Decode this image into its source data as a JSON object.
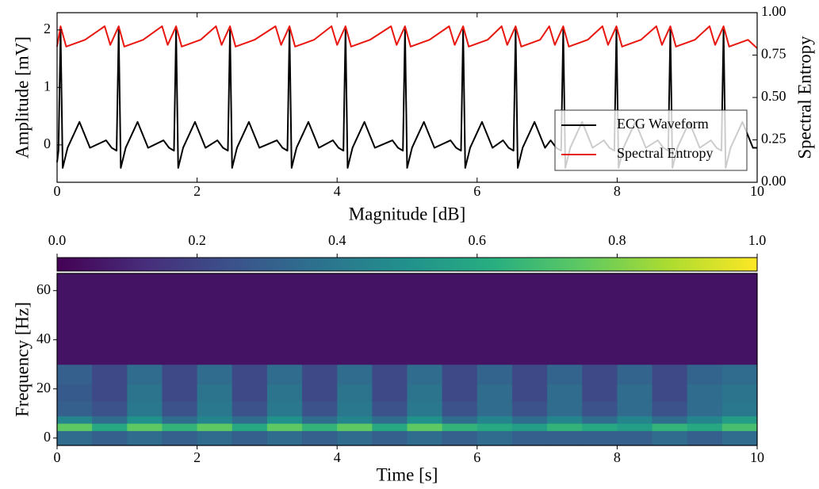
{
  "chart_data": [
    {
      "type": "line",
      "ylabel": "Amplitude [mV]",
      "y2label": "Spectral Entropy",
      "xlim": [
        0,
        10
      ],
      "xticks": [
        0,
        2,
        4,
        6,
        8,
        10
      ],
      "ylim": [
        -0.65,
        2.3
      ],
      "yticks": [
        0,
        1,
        2
      ],
      "y2lim": [
        0,
        1
      ],
      "y2ticks": [
        {
          "value": 0,
          "label": "0.00"
        },
        {
          "value": 0.25,
          "label": "0.25"
        },
        {
          "value": 0.5,
          "label": "0.50"
        },
        {
          "value": 0.75,
          "label": "0.75"
        },
        {
          "value": 1,
          "label": "1.00"
        }
      ],
      "legend": "lower right",
      "series": [
        {
          "name": "ECG Waveform",
          "color": "#000000",
          "x": [
            0,
            0.02,
            0.05,
            0.08,
            0.15,
            0.32,
            0.47,
            0.7,
            0.78,
            0.85,
            0.88,
            0.91,
            0.98,
            1.15,
            1.3,
            1.52,
            1.6,
            1.67,
            1.7,
            1.73,
            1.8,
            1.97,
            2.12,
            2.29,
            2.37,
            2.44,
            2.47,
            2.5,
            2.57,
            2.74,
            2.89,
            3.14,
            3.22,
            3.29,
            3.32,
            3.35,
            3.42,
            3.59,
            3.74,
            3.94,
            4.02,
            4.09,
            4.12,
            4.15,
            4.22,
            4.39,
            4.54,
            4.79,
            4.87,
            4.94,
            4.97,
            5.0,
            5.07,
            5.24,
            5.39,
            5.62,
            5.7,
            5.77,
            5.8,
            5.83,
            5.9,
            6.07,
            6.22,
            6.37,
            6.45,
            6.52,
            6.55,
            6.58,
            6.65,
            6.82,
            6.97,
            7.05,
            7.13,
            7.2,
            7.23,
            7.26,
            7.33,
            7.5,
            7.65,
            7.81,
            7.89,
            7.96,
            7.99,
            8.02,
            8.09,
            8.26,
            8.41,
            8.58,
            8.66,
            8.73,
            8.76,
            8.79,
            8.86,
            9.03,
            9.18,
            9.34,
            9.42,
            9.49,
            9.52,
            9.55,
            9.62,
            9.79,
            9.94,
            10
          ],
          "values": [
            -0.3,
            -0.1,
            2.0,
            -0.4,
            -0.05,
            0.4,
            -0.05,
            0.08,
            -0.05,
            -0.1,
            2.0,
            -0.4,
            -0.05,
            0.4,
            -0.05,
            0.08,
            -0.05,
            -0.1,
            2.0,
            -0.4,
            -0.05,
            0.4,
            -0.05,
            0.08,
            -0.05,
            -0.1,
            2.0,
            -0.4,
            -0.05,
            0.4,
            -0.05,
            0.08,
            -0.05,
            -0.1,
            2.0,
            -0.4,
            -0.05,
            0.4,
            -0.05,
            0.08,
            -0.05,
            -0.1,
            2.0,
            -0.4,
            -0.05,
            0.4,
            -0.05,
            0.08,
            -0.05,
            -0.1,
            2.0,
            -0.4,
            -0.05,
            0.4,
            -0.05,
            0.08,
            -0.05,
            -0.1,
            2.0,
            -0.4,
            -0.05,
            0.4,
            -0.05,
            0.08,
            -0.05,
            -0.1,
            2.0,
            -0.4,
            -0.05,
            0.4,
            -0.05,
            0.08,
            -0.05,
            -0.1,
            2.0,
            -0.4,
            -0.05,
            0.4,
            -0.05,
            0.08,
            -0.05,
            -0.1,
            2.0,
            -0.4,
            -0.05,
            0.4,
            -0.05,
            0.08,
            -0.05,
            -0.1,
            2.0,
            -0.4,
            -0.05,
            0.4,
            -0.05,
            0.08,
            -0.05,
            -0.1,
            2.0,
            -0.4,
            -0.05,
            0.4,
            -0.05,
            -0.05
          ]
        },
        {
          "name": "Spectral Entropy",
          "color": "#e8170f",
          "axis": "y2",
          "x": [
            0,
            0.05,
            0.13,
            0.4,
            0.68,
            0.76,
            0.88,
            0.96,
            1.23,
            1.5,
            1.58,
            1.7,
            1.78,
            2.05,
            2.27,
            2.35,
            2.47,
            2.55,
            2.82,
            3.12,
            3.2,
            3.32,
            3.4,
            3.67,
            3.92,
            4.0,
            4.12,
            4.2,
            4.47,
            4.77,
            4.85,
            4.97,
            5.05,
            5.32,
            5.6,
            5.68,
            5.8,
            5.88,
            6.15,
            6.35,
            6.43,
            6.55,
            6.63,
            6.9,
            7.03,
            7.11,
            7.23,
            7.31,
            7.58,
            7.79,
            7.87,
            7.99,
            8.07,
            8.34,
            8.56,
            8.64,
            8.76,
            8.84,
            9.11,
            9.32,
            9.4,
            9.52,
            9.6,
            9.87,
            10
          ],
          "values": [
            0.8,
            0.92,
            0.8,
            0.84,
            0.92,
            0.81,
            0.92,
            0.8,
            0.84,
            0.92,
            0.81,
            0.92,
            0.8,
            0.84,
            0.92,
            0.81,
            0.92,
            0.8,
            0.84,
            0.92,
            0.81,
            0.92,
            0.8,
            0.84,
            0.92,
            0.81,
            0.92,
            0.8,
            0.84,
            0.92,
            0.81,
            0.92,
            0.8,
            0.84,
            0.92,
            0.81,
            0.92,
            0.8,
            0.84,
            0.92,
            0.81,
            0.92,
            0.8,
            0.84,
            0.92,
            0.81,
            0.92,
            0.8,
            0.84,
            0.92,
            0.81,
            0.92,
            0.8,
            0.84,
            0.92,
            0.81,
            0.92,
            0.8,
            0.84,
            0.92,
            0.81,
            0.92,
            0.8,
            0.84,
            0.79
          ]
        }
      ]
    },
    {
      "type": "heatmap",
      "colormap": "viridis",
      "xlabel": "Time [s]",
      "ylabel": "Frequency [Hz]",
      "colorbar_label": "Magnitude [dB]",
      "xlim": [
        0,
        10
      ],
      "xticks": [
        0,
        2,
        4,
        6,
        8,
        10
      ],
      "ylim": [
        -3,
        67
      ],
      "yticks": [
        0,
        20,
        40,
        60
      ],
      "clim": [
        0,
        1
      ],
      "cticks": [
        {
          "value": 0,
          "label": "0.0"
        },
        0.2,
        0.4,
        0.6,
        0.8,
        {
          "value": 1,
          "label": "1.0"
        }
      ],
      "x_edges": [
        0,
        0.5,
        1,
        1.5,
        2,
        2.5,
        3,
        3.5,
        4,
        4.5,
        5,
        5.5,
        6,
        6.5,
        7,
        7.5,
        8,
        8.5,
        9,
        9.5,
        10
      ],
      "y_edges": [
        -3,
        3,
        6,
        9,
        15,
        22,
        30,
        67
      ],
      "z": [
        [
          0.35,
          0.3,
          0.35,
          0.3,
          0.35,
          0.3,
          0.35,
          0.3,
          0.35,
          0.3,
          0.35,
          0.3,
          0.35,
          0.3,
          0.3,
          0.3,
          0.3,
          0.35,
          0.3,
          0.35
        ],
        [
          0.75,
          0.6,
          0.75,
          0.65,
          0.75,
          0.6,
          0.75,
          0.65,
          0.75,
          0.6,
          0.75,
          0.65,
          0.6,
          0.55,
          0.65,
          0.6,
          0.55,
          0.65,
          0.6,
          0.7
        ],
        [
          0.45,
          0.35,
          0.5,
          0.35,
          0.45,
          0.35,
          0.5,
          0.35,
          0.45,
          0.35,
          0.5,
          0.35,
          0.45,
          0.35,
          0.45,
          0.35,
          0.45,
          0.35,
          0.45,
          0.55
        ],
        [
          0.3,
          0.25,
          0.4,
          0.25,
          0.4,
          0.25,
          0.4,
          0.25,
          0.4,
          0.25,
          0.4,
          0.25,
          0.35,
          0.25,
          0.35,
          0.25,
          0.35,
          0.25,
          0.35,
          0.4
        ],
        [
          0.28,
          0.22,
          0.38,
          0.22,
          0.38,
          0.22,
          0.38,
          0.22,
          0.38,
          0.22,
          0.38,
          0.22,
          0.35,
          0.22,
          0.35,
          0.22,
          0.35,
          0.22,
          0.35,
          0.38
        ],
        [
          0.3,
          0.22,
          0.35,
          0.22,
          0.35,
          0.22,
          0.35,
          0.22,
          0.35,
          0.22,
          0.35,
          0.22,
          0.32,
          0.22,
          0.32,
          0.22,
          0.32,
          0.22,
          0.32,
          0.35
        ],
        [
          0.05,
          0.05,
          0.05,
          0.05,
          0.05,
          0.05,
          0.05,
          0.05,
          0.05,
          0.05,
          0.05,
          0.05,
          0.05,
          0.05,
          0.05,
          0.05,
          0.05,
          0.05,
          0.05,
          0.05
        ]
      ]
    }
  ]
}
